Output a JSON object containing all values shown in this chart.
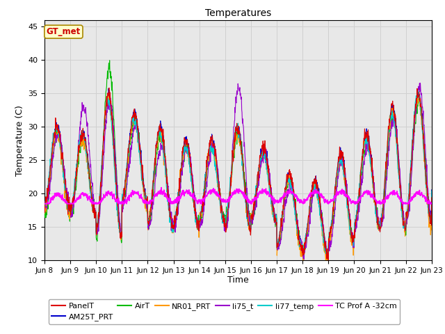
{
  "title": "Temperatures",
  "xlabel": "Time",
  "ylabel": "Temperature (C)",
  "ylim": [
    10,
    46
  ],
  "annotation": "GT_met",
  "annotation_color": "#cc0000",
  "annotation_bg": "#ffffcc",
  "annotation_border": "#aa8800",
  "series_colors": {
    "PanelT": "#dd0000",
    "AM25T_PRT": "#0000cc",
    "AirT": "#00bb00",
    "NR01_PRT": "#ff9900",
    "li75_t": "#9900cc",
    "li77_temp": "#00cccc",
    "TC Prof A -32cm": "#ff00ff"
  },
  "grid_color": "#d0d0d0",
  "bg_color": "#e8e8e8",
  "tick_labels": [
    "Jun 8",
    "Jun 9",
    "Jun 10",
    "Jun 11",
    "Jun 12",
    "Jun 13",
    "Jun 14",
    "Jun 15",
    "Jun 16",
    "Jun 17",
    "Jun 18",
    "Jun 19",
    "Jun 20",
    "Jun 21",
    "Jun 22",
    "Jun 23"
  ],
  "yticks": [
    10,
    15,
    20,
    25,
    30,
    35,
    40,
    45
  ],
  "figsize": [
    6.4,
    4.8
  ],
  "dpi": 100
}
